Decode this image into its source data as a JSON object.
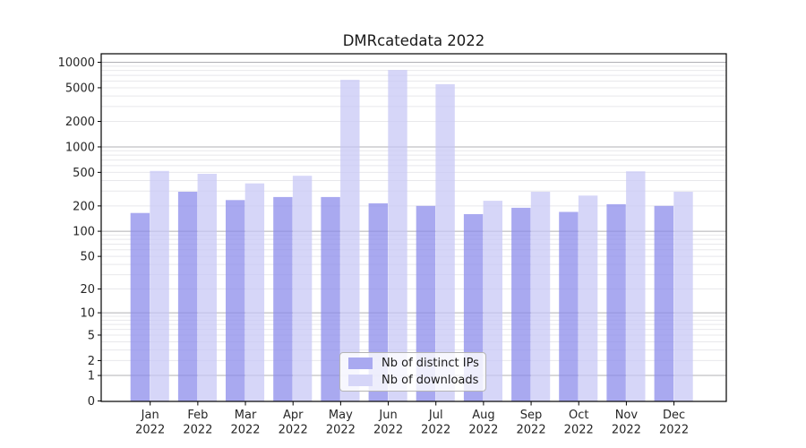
{
  "chart_data": {
    "type": "bar",
    "title": "DMRcatedata 2022",
    "yscale": "log1p",
    "grid": true,
    "legend_position": "lower center",
    "ylim": [
      0,
      12300
    ],
    "y_ticks": [
      0,
      1,
      2,
      5,
      10,
      20,
      50,
      100,
      200,
      500,
      1000,
      2000,
      5000,
      10000
    ],
    "categories": [
      {
        "month": "Jan",
        "year": "2022"
      },
      {
        "month": "Feb",
        "year": "2022"
      },
      {
        "month": "Mar",
        "year": "2022"
      },
      {
        "month": "Apr",
        "year": "2022"
      },
      {
        "month": "May",
        "year": "2022"
      },
      {
        "month": "Jun",
        "year": "2022"
      },
      {
        "month": "Jul",
        "year": "2022"
      },
      {
        "month": "Aug",
        "year": "2022"
      },
      {
        "month": "Sep",
        "year": "2022"
      },
      {
        "month": "Oct",
        "year": "2022"
      },
      {
        "month": "Nov",
        "year": "2022"
      },
      {
        "month": "Dec",
        "year": "2022"
      }
    ],
    "series": [
      {
        "name": "Nb of distinct IPs",
        "color": "#a9a9f0",
        "bar_rgba": "rgba(136,136,234,0.72)",
        "values": [
          165,
          295,
          235,
          255,
          255,
          215,
          200,
          160,
          190,
          170,
          210,
          200
        ]
      },
      {
        "name": "Nb of downloads",
        "color": "#d6d6f8",
        "bar_rgba": "rgba(198,198,245,0.72)",
        "values": [
          520,
          480,
          370,
          455,
          6200,
          8100,
          5500,
          230,
          295,
          265,
          515,
          295
        ]
      }
    ],
    "grid_major_color": "#b0b0b5",
    "grid_minor_color": "#e8e8eb",
    "axis_color": "#000000",
    "tick_label_color": "#262626"
  }
}
